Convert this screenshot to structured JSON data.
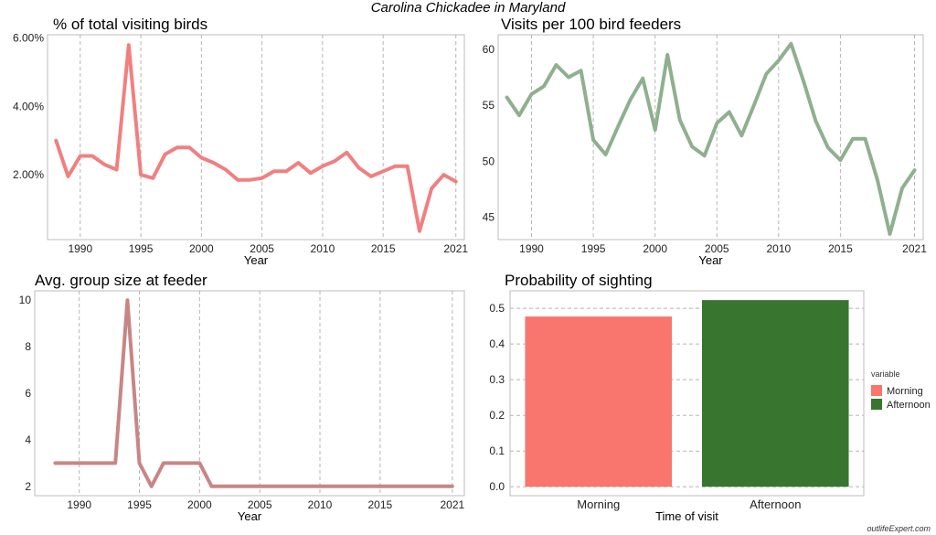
{
  "title": "Carolina Chickadee in Maryland",
  "watermark": "outlifeExpert.com",
  "chart_data": [
    {
      "type": "line",
      "title": "% of total visiting birds",
      "xlabel": "Year",
      "ylabel": "",
      "color": "#f08080",
      "x": [
        1988,
        1989,
        1990,
        1991,
        1992,
        1993,
        1994,
        1995,
        1996,
        1997,
        1998,
        1999,
        2000,
        2001,
        2002,
        2003,
        2004,
        2005,
        2006,
        2007,
        2008,
        2009,
        2010,
        2011,
        2012,
        2013,
        2014,
        2015,
        2016,
        2017,
        2018,
        2019,
        2020,
        2021
      ],
      "series": [
        {
          "values": [
            3.0,
            1.95,
            2.55,
            2.55,
            2.3,
            2.15,
            5.8,
            2.0,
            1.9,
            2.6,
            2.8,
            2.8,
            2.5,
            2.35,
            2.15,
            1.85,
            1.85,
            1.9,
            2.1,
            2.1,
            2.35,
            2.05,
            2.25,
            2.4,
            2.65,
            2.2,
            1.95,
            2.1,
            2.25,
            2.25,
            0.35,
            1.6,
            2.0,
            1.8
          ]
        }
      ],
      "xticks": [
        1990,
        1995,
        2000,
        2005,
        2010,
        2015,
        2021
      ],
      "yticks": [
        2.0,
        4.0,
        6.0
      ],
      "ytick_labels": [
        "2.00%",
        "4.00%",
        "6.00%"
      ],
      "xlim": [
        1987.3,
        2021.7
      ],
      "ylim": [
        0.1,
        6.1
      ],
      "grid": "vertical-dashed"
    },
    {
      "type": "line",
      "title": "Visits per 100 bird feeders",
      "xlabel": "Year",
      "ylabel": "",
      "color": "#8fb08f",
      "x": [
        1988,
        1989,
        1990,
        1991,
        1992,
        1993,
        1994,
        1995,
        1996,
        1997,
        1998,
        1999,
        2000,
        2001,
        2002,
        2003,
        2004,
        2005,
        2006,
        2007,
        2008,
        2009,
        2010,
        2011,
        2012,
        2013,
        2014,
        2015,
        2016,
        2017,
        2018,
        2019,
        2020,
        2021
      ],
      "series": [
        {
          "values": [
            55.7,
            54.1,
            56.0,
            56.7,
            58.6,
            57.5,
            58.1,
            51.9,
            50.6,
            53.1,
            55.5,
            57.4,
            52.8,
            59.5,
            53.7,
            51.3,
            50.5,
            53.4,
            54.4,
            52.3,
            55.0,
            57.8,
            59.0,
            60.5,
            57.2,
            53.6,
            51.2,
            50.1,
            52.0,
            52.0,
            48.3,
            43.5,
            47.6,
            49.2
          ]
        }
      ],
      "xticks": [
        1990,
        1995,
        2000,
        2005,
        2010,
        2015,
        2021
      ],
      "yticks": [
        45,
        50,
        55,
        60
      ],
      "ytick_labels": [
        "45",
        "50",
        "55",
        "60"
      ],
      "xlim": [
        1987.3,
        2021.7
      ],
      "ylim": [
        43.0,
        61.3
      ],
      "grid": "vertical-dashed"
    },
    {
      "type": "line",
      "title": "Avg. group size at feeder",
      "xlabel": "Year",
      "ylabel": "",
      "color": "#c98585",
      "x": [
        1988,
        1989,
        1990,
        1991,
        1992,
        1993,
        1994,
        1995,
        1996,
        1997,
        1998,
        1999,
        2000,
        2001,
        2002,
        2003,
        2004,
        2005,
        2006,
        2007,
        2008,
        2009,
        2010,
        2011,
        2012,
        2013,
        2014,
        2015,
        2016,
        2017,
        2018,
        2019,
        2020,
        2021
      ],
      "series": [
        {
          "values": [
            3,
            3,
            3,
            3,
            3,
            3,
            10,
            3,
            2,
            3,
            3,
            3,
            3,
            2,
            2,
            2,
            2,
            2,
            2,
            2,
            2,
            2,
            2,
            2,
            2,
            2,
            2,
            2,
            2,
            2,
            2,
            2,
            2,
            2
          ]
        }
      ],
      "xticks": [
        1990,
        1995,
        2000,
        2005,
        2010,
        2015,
        2021
      ],
      "yticks": [
        2,
        4,
        6,
        8,
        10
      ],
      "ytick_labels": [
        "2",
        "4",
        "6",
        "8",
        "10"
      ],
      "xlim": [
        1986.3,
        2022.0
      ],
      "ylim": [
        1.6,
        10.4
      ],
      "grid": "vertical-dashed"
    },
    {
      "type": "bar",
      "title": "Probability of sighting",
      "xlabel": "Time of visit",
      "ylabel": "",
      "categories": [
        "Morning",
        "Afternoon"
      ],
      "values": [
        0.477,
        0.523
      ],
      "colors": [
        "#f8766d",
        "#38752f"
      ],
      "yticks": [
        0.0,
        0.1,
        0.2,
        0.3,
        0.4,
        0.5
      ],
      "ytick_labels": [
        "0.0",
        "0.1",
        "0.2",
        "0.3",
        "0.4",
        "0.5"
      ],
      "ylim": [
        -0.025,
        0.549
      ],
      "grid": "horizontal-dashed",
      "legend": {
        "title": "variable",
        "entries": [
          "Morning",
          "Afternoon"
        ],
        "placement": "right"
      }
    }
  ]
}
